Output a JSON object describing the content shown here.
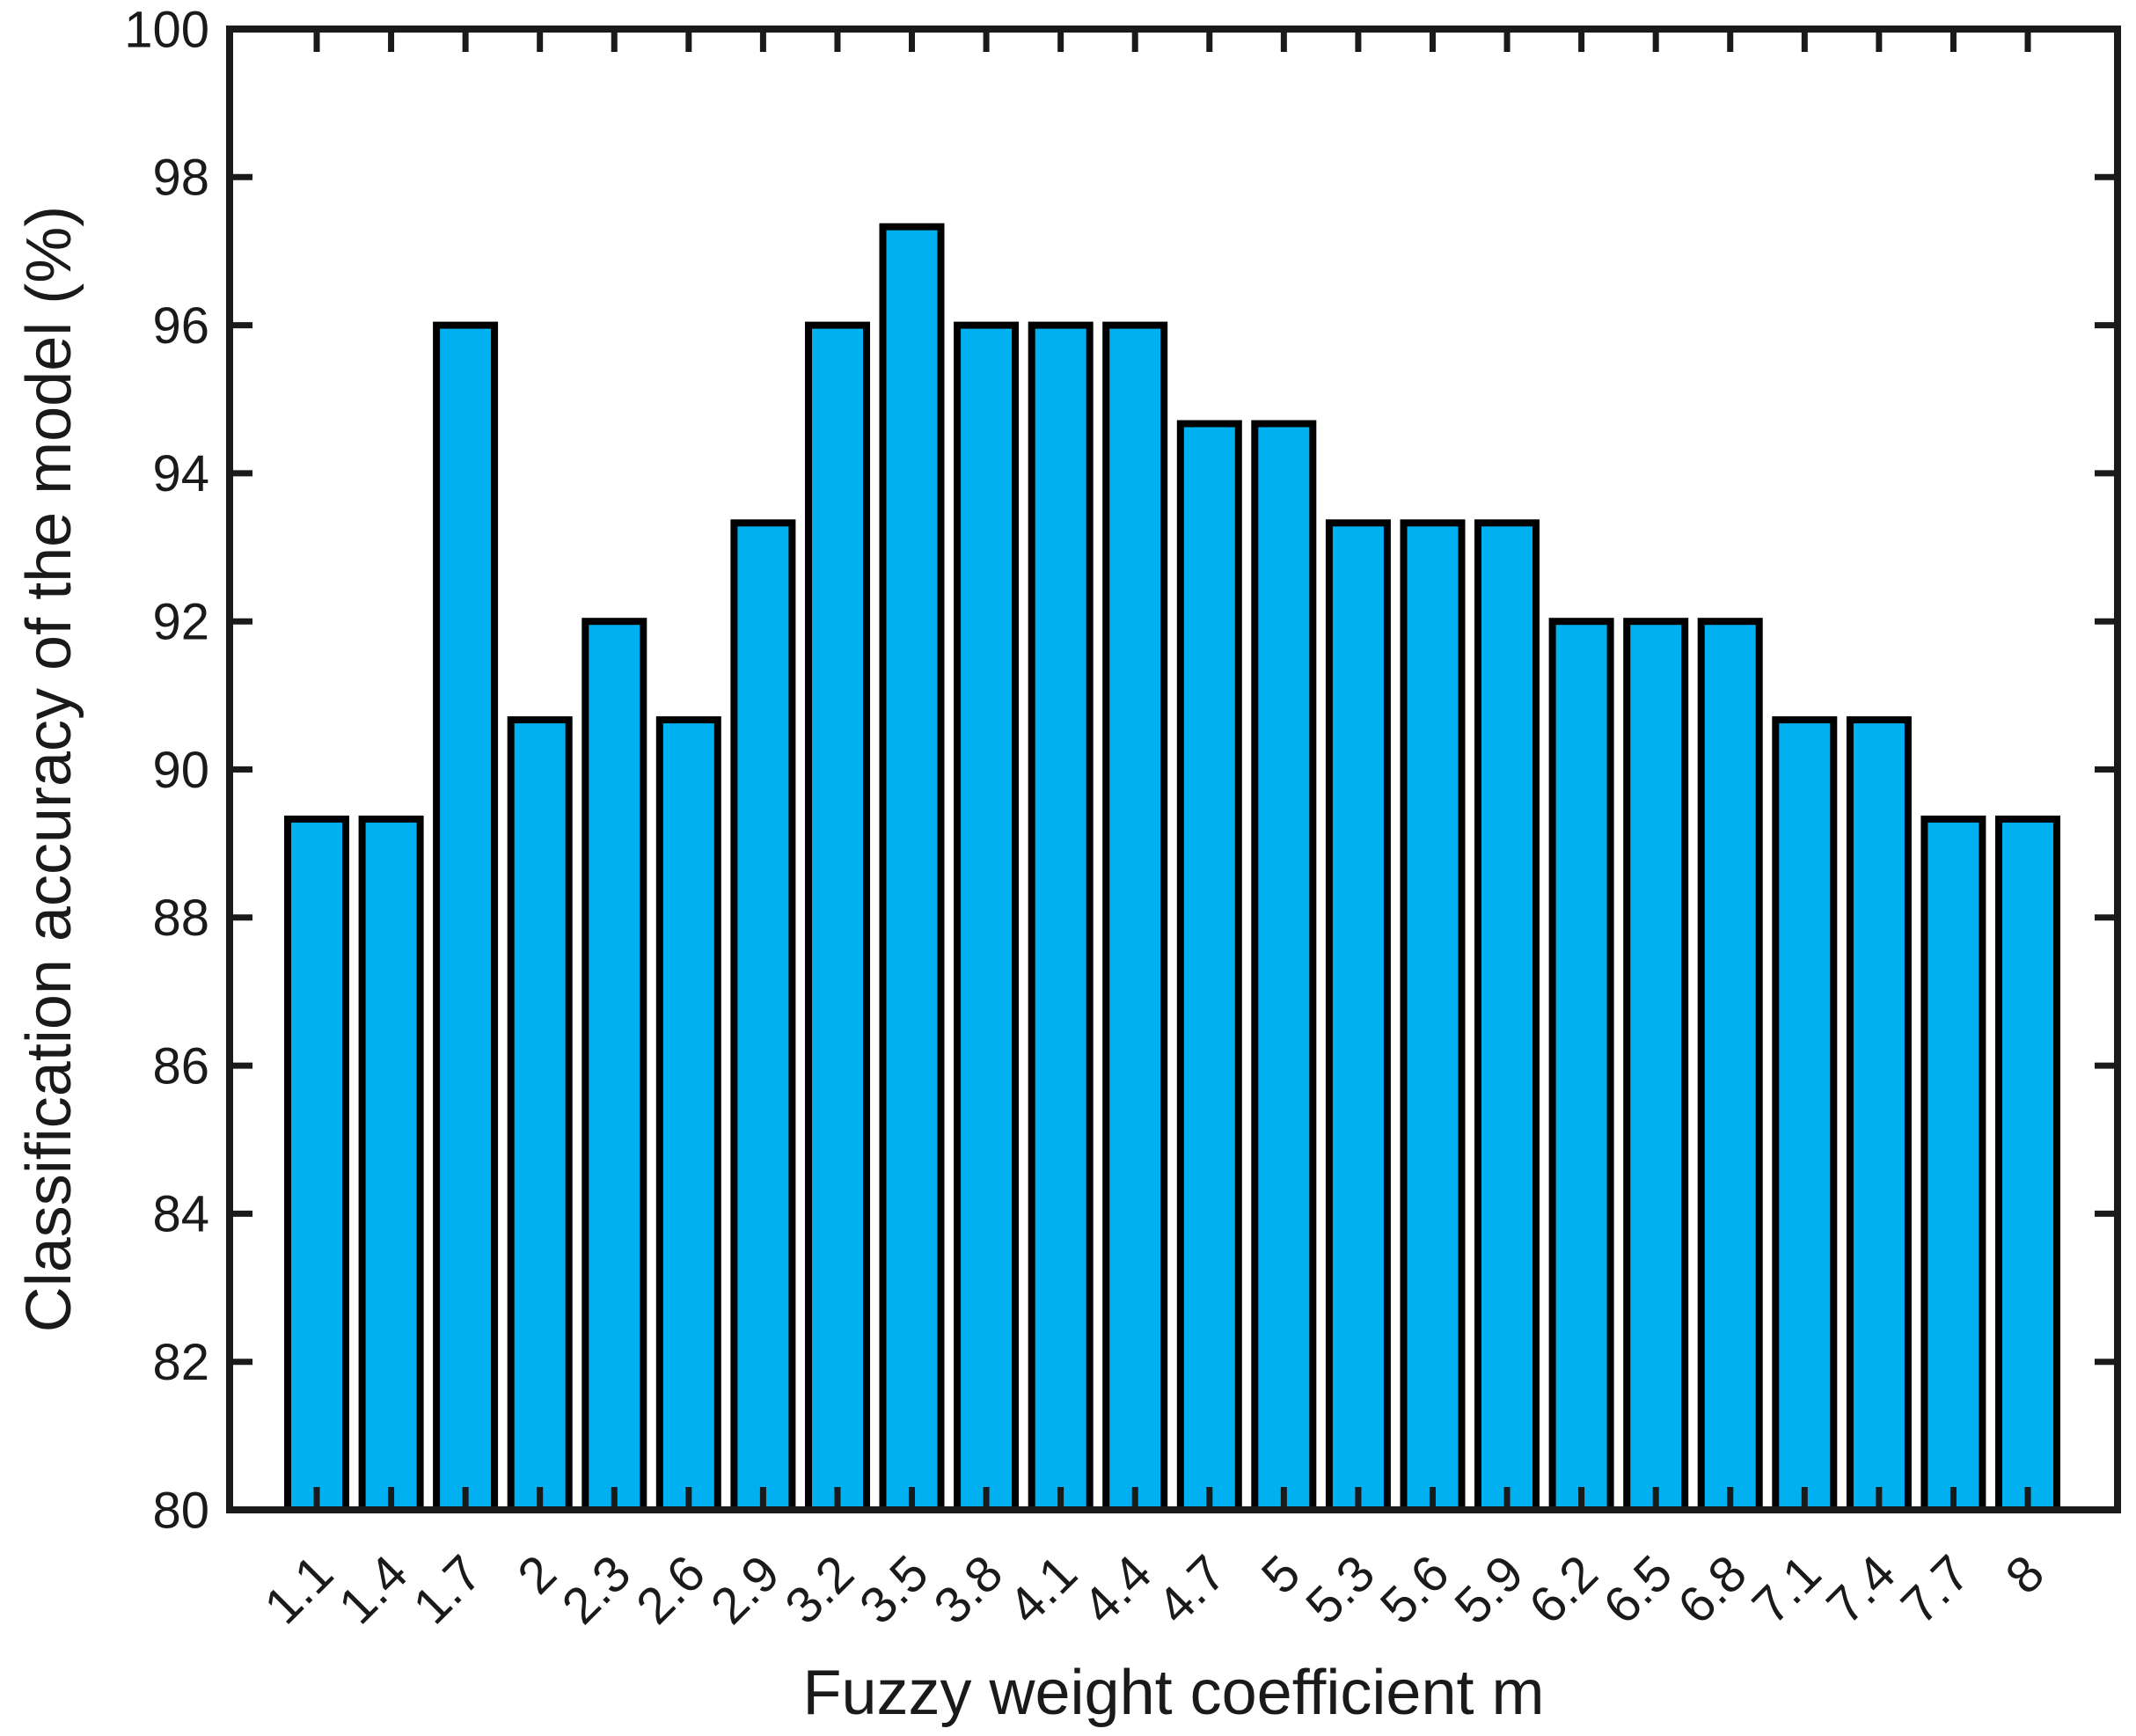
{
  "figure": {
    "background": "#ffffff"
  },
  "chart_data": {
    "type": "bar",
    "title": "",
    "xlabel": "Fuzzy weight coefficient m",
    "ylabel": "Classification accuracy of the model (%)",
    "categories": [
      "1.1",
      "1.4",
      "1.7",
      "2",
      "2.3",
      "2.6",
      "2.9",
      "3.2",
      "3.5",
      "3.8",
      "4.1",
      "4.4",
      "4.7",
      "5",
      "5.3",
      "5.6",
      "5.9",
      "6.2",
      "6.5",
      "6.8",
      "7.1",
      "7.4",
      "7.7",
      "8"
    ],
    "values": [
      89.33,
      89.33,
      96,
      90.67,
      92,
      90.67,
      93.33,
      96,
      97.33,
      96,
      96,
      96,
      94.67,
      94.67,
      93.33,
      93.33,
      93.33,
      92,
      92,
      92,
      90.67,
      90.67,
      89.33,
      89.33
    ],
    "ylim": [
      80,
      100
    ],
    "yticks": [
      80,
      82,
      84,
      86,
      88,
      90,
      92,
      94,
      96,
      98,
      100
    ],
    "xtick_rotation": 45,
    "grid": false,
    "legend": null,
    "bar_color": "#00B0F0",
    "bar_edge_color": "#000000",
    "axis_color": "#1a1a1a",
    "box": true,
    "tick_direction": "in"
  }
}
